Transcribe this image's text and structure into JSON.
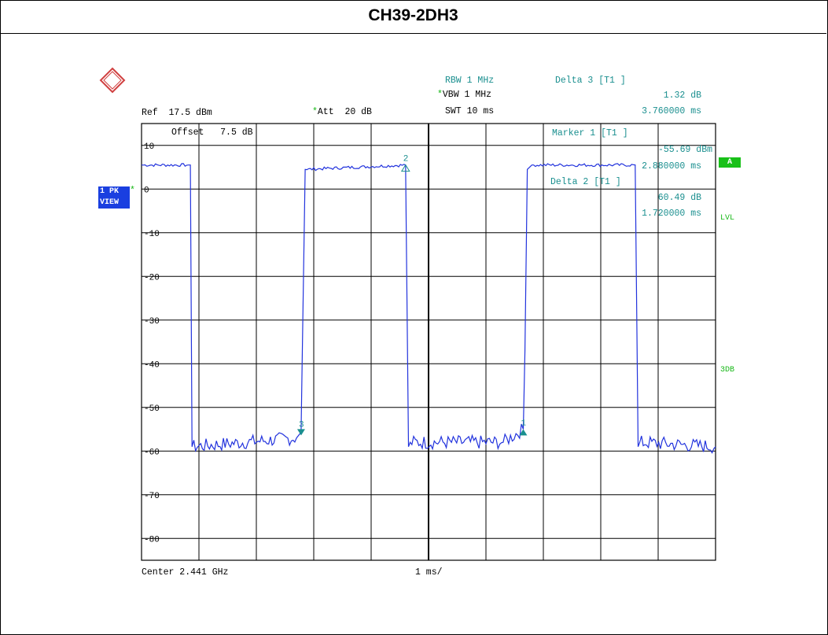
{
  "title": "CH39-2DH3",
  "header": {
    "ref_label": "Ref",
    "ref_value": "17.5 dBm",
    "att_star": "*",
    "att_label": "Att",
    "att_value": "20 dB",
    "rbw_label": "RBW",
    "rbw_value": "1 MHz",
    "vbw_star": "*",
    "vbw_label": "VBW",
    "vbw_value": "1 MHz",
    "swt_label": "SWT",
    "swt_value": "10 ms",
    "delta3_label": "Delta 3 [T1 ]",
    "delta3_db": "1.32 dB",
    "delta3_time": "3.760000 ms"
  },
  "offset_label": "Offset",
  "offset_value": "7.5 dB",
  "marker1_label": "Marker 1 [T1 ]",
  "marker1_dbm": "-55.69 dBm",
  "marker1_time": "2.880000 ms",
  "delta2_label": "Delta 2 [T1 ]",
  "delta2_db": "60.49 dB",
  "delta2_time": "1.720000 ms",
  "side_badge_line1": "1 PK",
  "side_badge_star": "*",
  "side_badge_line2": "VIEW",
  "right_badge": "A",
  "right_lvl": "LVL",
  "right_3db": "3DB",
  "footer_center": "Center 2.441 GHz",
  "footer_span": "1 ms/",
  "colors": {
    "trace": "#2233dd",
    "marker": "#1a8f8f",
    "grid": "#000000",
    "badge": "#1a3fe0",
    "green": "#18c018"
  },
  "chart_data": {
    "type": "line",
    "ylim": [
      -85,
      15
    ],
    "xlim": [
      0,
      10
    ],
    "x_unit": "ms",
    "y_ticks": [
      "10",
      "0",
      "-10",
      "-20",
      "-30",
      "-40",
      "-50",
      "-60",
      "-70",
      "-80"
    ],
    "y_tick_values": [
      10,
      0,
      -10,
      -20,
      -30,
      -40,
      -50,
      -60,
      -70,
      -80
    ],
    "series": [
      {
        "x": [
          0,
          0.82,
          0.85,
          0.88,
          2.7,
          2.78,
          2.8,
          2.85,
          4.6,
          4.65,
          4.68,
          6.3,
          6.65,
          6.68,
          6.72,
          6.8,
          8.6,
          8.65,
          8.68,
          10
        ],
        "y": [
          5.5,
          5.5,
          5.5,
          -59,
          -57,
          -55.7,
          -38,
          4.5,
          5.5,
          -59,
          -58,
          -58,
          -55,
          -37,
          4.5,
          5.5,
          5.5,
          -59,
          -58,
          -59
        ]
      }
    ],
    "markers": [
      {
        "label": "1",
        "x": 6.65,
        "y": -55.7,
        "shape": "up"
      },
      {
        "label": "2",
        "x": 4.6,
        "y": 4.8,
        "shape": "up-hollow"
      },
      {
        "label": "3",
        "x": 2.78,
        "y": -55.7,
        "shape": "down"
      }
    ]
  }
}
